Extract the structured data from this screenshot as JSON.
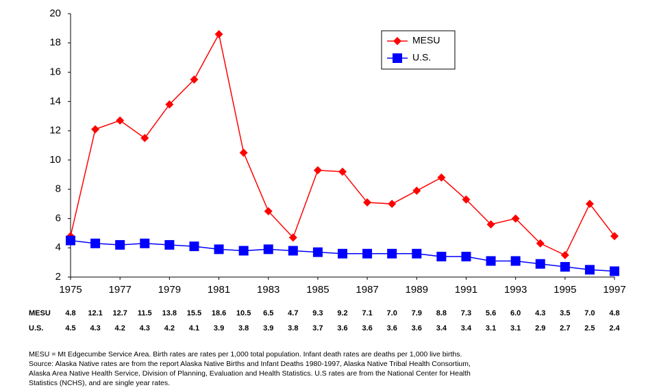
{
  "chart_data": {
    "type": "line",
    "x": [
      1975,
      1976,
      1977,
      1978,
      1979,
      1980,
      1981,
      1982,
      1983,
      1984,
      1985,
      1986,
      1987,
      1988,
      1989,
      1990,
      1991,
      1992,
      1993,
      1994,
      1995,
      1996,
      1997
    ],
    "series": [
      {
        "name": "MESU",
        "color": "#ff0000",
        "marker": "diamond",
        "values": [
          4.8,
          12.1,
          12.7,
          11.5,
          13.8,
          15.5,
          18.6,
          10.5,
          6.5,
          4.7,
          9.3,
          9.2,
          7.1,
          7.0,
          7.9,
          8.8,
          7.3,
          5.6,
          6.0,
          4.3,
          3.5,
          7.0,
          4.8
        ],
        "value_labels": [
          "4.8",
          "12.1",
          "12.7",
          "11.5",
          "13.8",
          "15.5",
          "18.6",
          "10.5",
          "6.5",
          "4.7",
          "9.3",
          "9.2",
          "7.1",
          "7.0",
          "7.9",
          "8.8",
          "7.3",
          "5.6",
          "6.0",
          "4.3",
          "3.5",
          "7.0",
          "4.8"
        ]
      },
      {
        "name": "U.S.",
        "color": "#0000ff",
        "marker": "square",
        "values": [
          4.5,
          4.3,
          4.2,
          4.3,
          4.2,
          4.1,
          3.9,
          3.8,
          3.9,
          3.8,
          3.7,
          3.6,
          3.6,
          3.6,
          3.6,
          3.4,
          3.4,
          3.1,
          3.1,
          2.9,
          2.7,
          2.5,
          2.4
        ],
        "value_labels": [
          "4.5",
          "4.3",
          "4.2",
          "4.3",
          "4.2",
          "4.1",
          "3.9",
          "3.8",
          "3.9",
          "3.8",
          "3.7",
          "3.6",
          "3.6",
          "3.6",
          "3.6",
          "3.4",
          "3.4",
          "3.1",
          "3.1",
          "2.9",
          "2.7",
          "2.5",
          "2.4"
        ]
      }
    ],
    "xlim": [
      1975,
      1997
    ],
    "xticks": [
      1975,
      1977,
      1979,
      1981,
      1983,
      1985,
      1987,
      1989,
      1991,
      1993,
      1995,
      1997
    ],
    "ylim": [
      2,
      20
    ],
    "yticks": [
      2,
      4,
      6,
      8,
      10,
      12,
      14,
      16,
      18,
      20
    ],
    "grid": false,
    "legend": "top-right",
    "note_lines": [
      "MESU = Mt Edgecumbe Service Area.  Birth rates are rates per 1,000 total population.  Infant death rates are deaths per 1,000 live births.",
      "Source:  Alaska Native rates are from the report Alaska Native Births and Infant Deaths 1980-1997, Alaska Native Tribal Health Consortium,",
      "Alaska Area Native Health Service, Division of Planning, Evaluation and Health Statistics.  U.S rates are from the National Center for Health",
      "Statistics (NCHS), and are single year rates."
    ]
  }
}
